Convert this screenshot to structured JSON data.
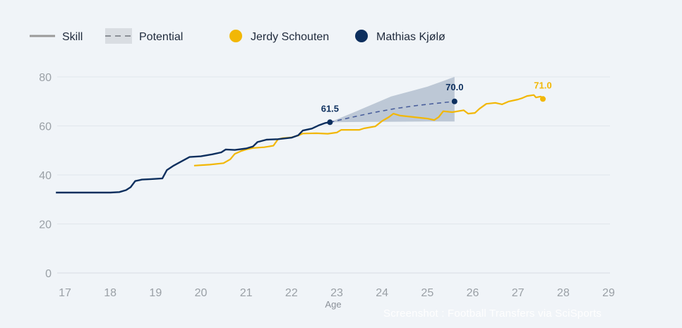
{
  "legend": {
    "skill": "Skill",
    "potential": "Potential",
    "player_a": "Jerdy Schouten",
    "player_b": "Mathias Kjølø"
  },
  "watermark": "Screenshot : Football Transfers via SciSports",
  "colors": {
    "player_a": "#f2b705",
    "player_b": "#0d2f5e",
    "potential_band": "#b7c3d2",
    "grid": "#e1e6ec",
    "legend_gray": "#9a9a9a"
  },
  "chart_data": {
    "type": "line",
    "title": "",
    "xlabel": "Age",
    "ylabel": "",
    "xlim": [
      16.8,
      29
    ],
    "ylim": [
      0,
      80
    ],
    "x_ticks": [
      17,
      18,
      19,
      20,
      21,
      22,
      23,
      24,
      25,
      26,
      27,
      28,
      29
    ],
    "y_ticks": [
      0,
      20,
      40,
      60,
      80
    ],
    "series": [
      {
        "name": "Mathias Kjølø",
        "role": "skill",
        "color": "#0d2f5e",
        "points": [
          [
            16.8,
            32.8
          ],
          [
            17.5,
            32.8
          ],
          [
            18.0,
            32.8
          ],
          [
            18.2,
            33.0
          ],
          [
            18.35,
            33.8
          ],
          [
            18.45,
            35.0
          ],
          [
            18.55,
            37.5
          ],
          [
            18.7,
            38.1
          ],
          [
            18.9,
            38.3
          ],
          [
            19.15,
            38.6
          ],
          [
            19.25,
            42.0
          ],
          [
            19.4,
            43.8
          ],
          [
            19.55,
            45.3
          ],
          [
            19.75,
            47.3
          ],
          [
            20.0,
            47.6
          ],
          [
            20.25,
            48.4
          ],
          [
            20.45,
            49.2
          ],
          [
            20.55,
            50.4
          ],
          [
            20.75,
            50.2
          ],
          [
            21.0,
            50.8
          ],
          [
            21.15,
            51.6
          ],
          [
            21.25,
            53.4
          ],
          [
            21.45,
            54.4
          ],
          [
            21.7,
            54.6
          ],
          [
            22.0,
            55.2
          ],
          [
            22.15,
            56.2
          ],
          [
            22.25,
            58.1
          ],
          [
            22.45,
            58.9
          ],
          [
            22.6,
            60.2
          ],
          [
            22.75,
            61.2
          ],
          [
            22.85,
            61.5
          ]
        ],
        "end_label": "61.5"
      },
      {
        "name": "Mathias Kjølø",
        "role": "potential",
        "color": "#4a5f9c",
        "points": [
          [
            22.85,
            61.5
          ],
          [
            23.3,
            63.4
          ],
          [
            23.8,
            65.4
          ],
          [
            24.3,
            67.1
          ],
          [
            24.8,
            68.4
          ],
          [
            25.3,
            69.4
          ],
          [
            25.6,
            70.0
          ]
        ],
        "band_lower": [
          [
            22.85,
            61.5
          ],
          [
            23.5,
            61.6
          ],
          [
            24.2,
            61.7
          ],
          [
            25.0,
            61.8
          ],
          [
            25.6,
            61.8
          ]
        ],
        "band_upper": [
          [
            22.85,
            61.5
          ],
          [
            23.5,
            66.5
          ],
          [
            24.2,
            72.0
          ],
          [
            25.0,
            76.0
          ],
          [
            25.6,
            80.0
          ]
        ],
        "end_label": "70.0"
      },
      {
        "name": "Jerdy Schouten",
        "role": "skill",
        "color": "#f2b705",
        "points": [
          [
            19.85,
            43.8
          ],
          [
            20.2,
            44.2
          ],
          [
            20.5,
            44.8
          ],
          [
            20.65,
            46.4
          ],
          [
            20.75,
            48.6
          ],
          [
            20.9,
            49.8
          ],
          [
            21.0,
            50.4
          ],
          [
            21.15,
            51.0
          ],
          [
            21.4,
            51.3
          ],
          [
            21.6,
            51.9
          ],
          [
            21.7,
            54.5
          ],
          [
            21.8,
            55.0
          ],
          [
            22.0,
            55.3
          ],
          [
            22.15,
            56.1
          ],
          [
            22.25,
            56.9
          ],
          [
            22.55,
            57.0
          ],
          [
            22.8,
            56.8
          ],
          [
            23.0,
            57.3
          ],
          [
            23.1,
            58.4
          ],
          [
            23.5,
            58.4
          ],
          [
            23.6,
            59.0
          ],
          [
            23.85,
            59.8
          ],
          [
            24.0,
            62.0
          ],
          [
            24.15,
            63.6
          ],
          [
            24.25,
            65.0
          ],
          [
            24.4,
            64.2
          ],
          [
            24.7,
            63.6
          ],
          [
            25.0,
            63.0
          ],
          [
            25.15,
            62.4
          ],
          [
            25.25,
            63.6
          ],
          [
            25.35,
            66.0
          ],
          [
            25.55,
            65.6
          ],
          [
            25.8,
            66.4
          ],
          [
            25.9,
            65.0
          ],
          [
            26.05,
            65.3
          ],
          [
            26.15,
            67.0
          ],
          [
            26.3,
            69.0
          ],
          [
            26.5,
            69.4
          ],
          [
            26.65,
            68.8
          ],
          [
            26.8,
            70.0
          ],
          [
            27.0,
            70.8
          ],
          [
            27.1,
            71.4
          ],
          [
            27.2,
            72.2
          ],
          [
            27.35,
            72.6
          ],
          [
            27.4,
            71.6
          ],
          [
            27.5,
            72.0
          ],
          [
            27.55,
            71.0
          ]
        ],
        "end_label": "71.0"
      }
    ]
  }
}
